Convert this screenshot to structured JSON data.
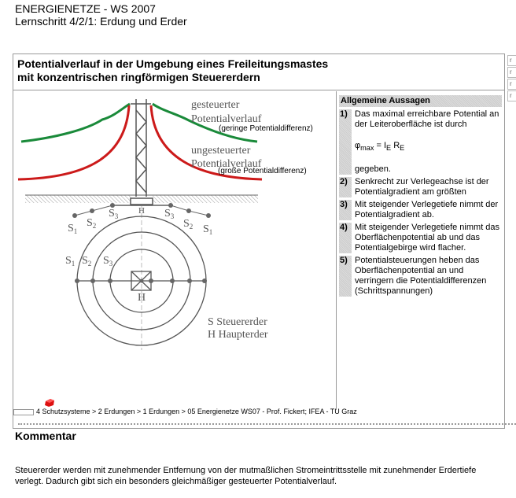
{
  "header": {
    "course": "ENERGIENETZE - WS 2007",
    "step": "Lernschritt 4/2/1: Erdung und Erder"
  },
  "slide": {
    "title_line1": "Potentialverlauf in der Umgebung eines Freileitungsmastes",
    "title_line2": "mit konzentrischen ringförmigen Steuererdern",
    "diagram": {
      "controlled_1": "gesteuerter",
      "controlled_2": "Potentialverlauf",
      "controlled_3": "(geringe Potentialdifferenz)",
      "uncontrolled_1": "ungesteuerter",
      "uncontrolled_2": "Potentialverlauf",
      "uncontrolled_3": "(große Potentialdifferenz)",
      "H": "H",
      "S": "S",
      "sub1": "1",
      "sub2": "2",
      "sub3": "3",
      "legend_s": "S Steuererder",
      "legend_h": "H Haupterder",
      "colors": {
        "controlled": "#1a8a3a",
        "uncontrolled": "#cc1a1a"
      }
    },
    "panel": {
      "heading": "Allgemeine Aussagen",
      "items": [
        {
          "num": "1)",
          "text": "Das maximal erreichbare Potential an der Leiteroberfläche ist durch",
          "formula_phi": "φ",
          "formula_max": "max",
          "formula_eq": " = I",
          "formula_e1": "E",
          "formula_r": " R",
          "formula_e2": "E",
          "after": "gegeben."
        },
        {
          "num": "2)",
          "text": "Senkrecht zur Verlegeachse ist der Potentialgradient am größten"
        },
        {
          "num": "3)",
          "text": "Mit steigender Verlegetiefe nimmt der Potentialgradient ab."
        },
        {
          "num": "4)",
          "text": "Mit steigender Verlegetiefe nimmt das Oberflächenpotential ab und das Potentialgebirge wird flacher."
        },
        {
          "num": "5)",
          "text": "Potentialsteuerungen heben das Oberflächenpotential an und verringern die Potentialdifferenzen (Schrittspannungen)"
        }
      ]
    },
    "side_tabs": [
      "r",
      "r",
      "r",
      "r"
    ],
    "breadcrumb": "4 Schutzsysteme > 2 Erdungen > 1 Erdungen > 05  Energienetze WS07 - Prof. Fickert; IFEA - TU Graz"
  },
  "comment": {
    "heading": "Kommentar",
    "text": "Steuererder werden mit zunehmender Entfernung von der mutmaßlichen Stromeintrittsstelle mit zunehmender Erdertiefe verlegt. Dadurch gibt sich ein besonders gleichmäßiger gesteuerter Potentialverlauf."
  }
}
